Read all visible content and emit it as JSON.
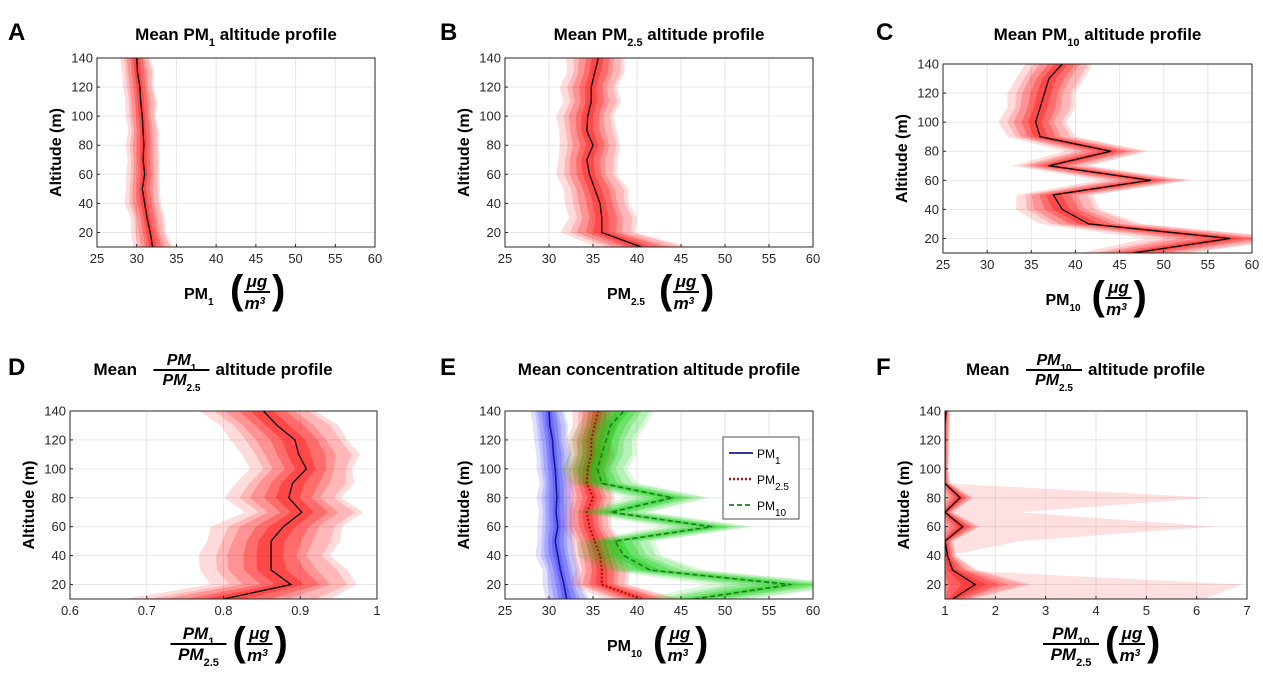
{
  "figure": {
    "colors": {
      "red": "#ff0000",
      "blue": "#2b2bff",
      "green": "#00cc00",
      "pm1_line": "#1a1a8c",
      "pm25_line": "#a31515",
      "pm10_line": "#1f7a1f"
    }
  },
  "chart_data": [
    {
      "panel": "A",
      "type": "line",
      "title": {
        "pre": "Mean PM",
        "sub": "1",
        "post": " altitude profile"
      },
      "ylabel": "Altitude (m)",
      "xlabel": {
        "main": "PM",
        "sub": "1"
      },
      "xlim": [
        25,
        60
      ],
      "xticks": [
        "25",
        "30",
        "35",
        "40",
        "45",
        "50",
        "55",
        "60"
      ],
      "ylim": [
        10,
        140
      ],
      "yticks": [
        "20",
        "40",
        "60",
        "80",
        "100",
        "120",
        "140"
      ],
      "grid": true,
      "altitude": [
        10,
        20,
        30,
        40,
        50,
        60,
        70,
        80,
        90,
        100,
        110,
        120,
        130,
        140
      ],
      "series": [
        {
          "color": "red",
          "mean": [
            32.0,
            31.7,
            31.3,
            31.0,
            30.7,
            31.0,
            30.8,
            30.9,
            30.8,
            30.7,
            30.5,
            30.4,
            30.1,
            30.0
          ],
          "spread": [
            2.6,
            2.3,
            2.2,
            2.4,
            2.2,
            2.2,
            2.1,
            2.2,
            2.0,
            2.0,
            2.1,
            2.0,
            2.1,
            2.0
          ]
        }
      ]
    },
    {
      "panel": "B",
      "type": "line",
      "title": {
        "pre": "Mean PM",
        "sub": "2.5",
        "post": " altitude profile"
      },
      "ylabel": "Altitude (m)",
      "xlabel": {
        "main": "PM",
        "sub": "2.5"
      },
      "xlim": [
        25,
        60
      ],
      "xticks": [
        "25",
        "30",
        "35",
        "40",
        "45",
        "50",
        "55",
        "60"
      ],
      "ylim": [
        10,
        140
      ],
      "yticks": [
        "20",
        "40",
        "60",
        "80",
        "100",
        "120",
        "140"
      ],
      "grid": true,
      "altitude": [
        10,
        20,
        30,
        40,
        50,
        60,
        70,
        80,
        90,
        100,
        110,
        120,
        130,
        140
      ],
      "series": [
        {
          "color": "red",
          "mean": [
            40.5,
            36.0,
            36.0,
            35.8,
            35.2,
            34.6,
            34.3,
            35.0,
            34.3,
            34.4,
            34.8,
            34.8,
            35.2,
            35.6
          ],
          "spread": [
            5.5,
            4.5,
            4.0,
            3.8,
            3.8,
            3.6,
            3.5,
            3.6,
            3.4,
            3.4,
            3.4,
            3.4,
            3.4,
            3.5
          ]
        }
      ]
    },
    {
      "panel": "C",
      "type": "line",
      "title": {
        "pre": "Mean PM",
        "sub": "10",
        "post": " altitude profile"
      },
      "ylabel": "Altitude (m)",
      "xlabel": {
        "main": "PM",
        "sub": "10"
      },
      "xlim": [
        25,
        60
      ],
      "xticks": [
        "25",
        "30",
        "35",
        "40",
        "45",
        "50",
        "55",
        "60"
      ],
      "ylim": [
        10,
        140
      ],
      "yticks": [
        "20",
        "40",
        "60",
        "80",
        "100",
        "120",
        "140"
      ],
      "grid": true,
      "altitude": [
        10,
        20,
        30,
        40,
        50,
        60,
        70,
        80,
        90,
        100,
        110,
        120,
        130,
        140
      ],
      "series": [
        {
          "color": "red",
          "mean": [
            46.5,
            57.5,
            41.5,
            38.5,
            37.5,
            48.5,
            37.0,
            44.0,
            36.0,
            35.5,
            36.0,
            36.5,
            37.0,
            38.5
          ],
          "spread": [
            6.5,
            9.0,
            6.0,
            5.0,
            4.5,
            5.5,
            4.5,
            5.0,
            4.0,
            4.0,
            4.0,
            4.0,
            4.0,
            4.0
          ]
        }
      ]
    },
    {
      "panel": "D",
      "type": "line",
      "title": {
        "pre": "Mean ",
        "frac_num_main": "PM",
        "frac_num_sub": "1",
        "frac_den_main": "PM",
        "frac_den_sub": "2.5",
        "post": " altitude profile"
      },
      "ylabel": "Altitude (m)",
      "xlabel": {
        "frac_num_main": "PM",
        "frac_num_sub": "1",
        "frac_den_main": "PM",
        "frac_den_sub": "2.5"
      },
      "xlim": [
        0.6,
        1.0
      ],
      "xticks": [
        "0.6",
        "0.7",
        "0.8",
        "0.9",
        "1"
      ],
      "ylim": [
        10,
        140
      ],
      "yticks": [
        "20",
        "40",
        "60",
        "80",
        "100",
        "120",
        "140"
      ],
      "grid": true,
      "altitude": [
        10,
        20,
        30,
        40,
        50,
        60,
        70,
        80,
        90,
        100,
        110,
        120,
        130,
        140
      ],
      "series": [
        {
          "color": "red",
          "mean": [
            0.8,
            0.888,
            0.862,
            0.862,
            0.862,
            0.878,
            0.902,
            0.885,
            0.89,
            0.908,
            0.898,
            0.893,
            0.87,
            0.852
          ],
          "spread": [
            0.14,
            0.1,
            0.1,
            0.09,
            0.09,
            0.09,
            0.08,
            0.08,
            0.08,
            0.07,
            0.08,
            0.08,
            0.08,
            0.08
          ]
        }
      ]
    },
    {
      "panel": "E",
      "type": "line",
      "title": {
        "pre": "Mean concentration altitude profile"
      },
      "ylabel": "Altitude (m)",
      "xlabel": {
        "main": "PM",
        "sub": "10"
      },
      "xlim": [
        25,
        60
      ],
      "xticks": [
        "25",
        "30",
        "35",
        "40",
        "45",
        "50",
        "55",
        "60"
      ],
      "ylim": [
        10,
        140
      ],
      "yticks": [
        "20",
        "40",
        "60",
        "80",
        "100",
        "120",
        "140"
      ],
      "grid": true,
      "legend_position": "top-right",
      "legend": [
        {
          "main": "PM",
          "sub": "1",
          "style": "solid",
          "color": "pm1_line"
        },
        {
          "main": "PM",
          "sub": "2.5",
          "style": "dotted",
          "color": "pm25_line"
        },
        {
          "main": "PM",
          "sub": "10",
          "style": "dashed",
          "color": "pm10_line"
        }
      ],
      "altitude": [
        10,
        20,
        30,
        40,
        50,
        60,
        70,
        80,
        90,
        100,
        110,
        120,
        130,
        140
      ],
      "series": [
        {
          "color": "blue",
          "line_color": "pm1_line",
          "dash": "",
          "mean": [
            32.0,
            31.7,
            31.3,
            31.0,
            30.7,
            31.0,
            30.8,
            30.9,
            30.8,
            30.7,
            30.5,
            30.4,
            30.1,
            30.0
          ],
          "spread": [
            2.6,
            2.3,
            2.2,
            2.4,
            2.2,
            2.2,
            2.1,
            2.2,
            2.0,
            2.0,
            2.1,
            2.0,
            2.1,
            2.0
          ]
        },
        {
          "color": "red",
          "line_color": "pm25_line",
          "dash": "2,2",
          "mean": [
            40.5,
            36.0,
            36.0,
            35.8,
            35.2,
            34.6,
            34.3,
            35.0,
            34.3,
            34.4,
            34.8,
            34.8,
            35.2,
            35.6
          ],
          "spread": [
            4.5,
            3.5,
            3.2,
            3.0,
            3.0,
            2.9,
            2.8,
            2.9,
            2.7,
            2.7,
            2.7,
            2.7,
            2.7,
            2.8
          ]
        },
        {
          "color": "green",
          "line_color": "pm10_line",
          "dash": "5,3",
          "mean": [
            46.5,
            57.5,
            41.5,
            38.5,
            37.5,
            48.5,
            37.0,
            44.0,
            36.0,
            35.5,
            36.0,
            36.5,
            37.0,
            38.5
          ],
          "spread": [
            6.5,
            9.0,
            6.0,
            5.0,
            4.5,
            5.5,
            4.5,
            5.0,
            4.0,
            4.0,
            4.0,
            4.0,
            4.0,
            4.0
          ]
        }
      ]
    },
    {
      "panel": "F",
      "type": "line",
      "title": {
        "pre": "Mean ",
        "frac_num_main": "PM",
        "frac_num_sub": "10",
        "frac_den_main": "PM",
        "frac_den_sub": "2.5",
        "post": " altitude profile"
      },
      "ylabel": "Altitude (m)",
      "xlabel": {
        "frac_num_main": "PM",
        "frac_num_sub": "10",
        "frac_den_main": "PM",
        "frac_den_sub": "2.5"
      },
      "xlim": [
        1,
        7
      ],
      "xticks": [
        "1",
        "2",
        "3",
        "4",
        "5",
        "6",
        "7"
      ],
      "ylim": [
        10,
        140
      ],
      "yticks": [
        "20",
        "40",
        "60",
        "80",
        "100",
        "120",
        "140"
      ],
      "grid": true,
      "altitude": [
        10,
        20,
        30,
        40,
        50,
        60,
        70,
        80,
        90,
        100,
        110,
        120,
        130,
        140
      ],
      "series": [
        {
          "color": "red",
          "mean": [
            1.15,
            1.6,
            1.15,
            1.05,
            1.0,
            1.35,
            1.0,
            1.3,
            1.0,
            1.0,
            1.0,
            1.0,
            1.0,
            1.02
          ],
          "spread": [
            0.4,
            1.3,
            0.5,
            0.2,
            0.15,
            0.4,
            0.15,
            0.3,
            0.1,
            0.08,
            0.08,
            0.1,
            0.1,
            0.1
          ],
          "extra_band": [
            5.0,
            5.3,
            0.0,
            0.0,
            1.5,
            5.0,
            1.5,
            5.0,
            0.0,
            0.0,
            0.0,
            0.0,
            0.0,
            0.0
          ]
        }
      ]
    }
  ]
}
